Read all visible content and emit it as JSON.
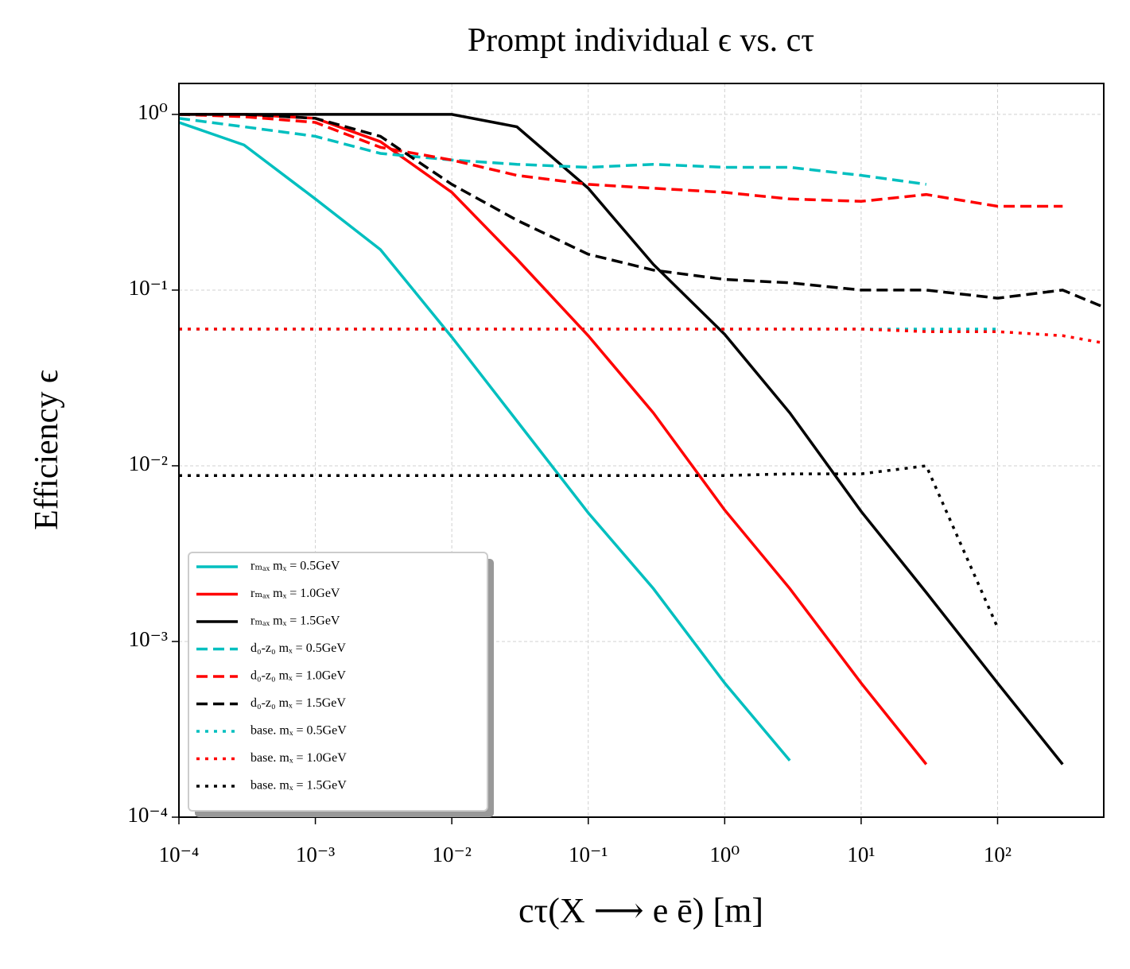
{
  "chart_data": {
    "type": "line",
    "title": "Prompt individual ϵ vs. cτ",
    "x_label": "cτ(X ⟶ e ē) [m]",
    "y_label": "Efficiency  ϵ",
    "xscale": "log",
    "yscale": "log",
    "grid": true,
    "legend": "lower left",
    "xlim": [
      0.0001,
      600
    ],
    "ylim": [
      0.0001,
      1.5
    ],
    "xticks": [
      {
        "value": 0.0001,
        "label": "10⁻⁴"
      },
      {
        "value": 0.001,
        "label": "10⁻³"
      },
      {
        "value": 0.01,
        "label": "10⁻²"
      },
      {
        "value": 0.1,
        "label": "10⁻¹"
      },
      {
        "value": 1,
        "label": "10⁰"
      },
      {
        "value": 10,
        "label": "10¹"
      },
      {
        "value": 100,
        "label": "10²"
      }
    ],
    "yticks": [
      {
        "value": 0.0001,
        "label": "10⁻⁴"
      },
      {
        "value": 0.001,
        "label": "10⁻³"
      },
      {
        "value": 0.01,
        "label": "10⁻²"
      },
      {
        "value": 0.1,
        "label": "10⁻¹"
      },
      {
        "value": 1,
        "label": "10⁰"
      }
    ],
    "x": [
      0.0001,
      0.0003,
      0.001,
      0.003,
      0.01,
      0.03,
      0.1,
      0.3,
      1,
      3,
      10,
      30,
      100,
      300,
      600
    ],
    "series": [
      {
        "name": "rₘₐₓ mₓ = 0.5GeV",
        "color": "#00bfbf",
        "linestyle": "solid",
        "values": [
          0.9,
          0.67,
          0.33,
          0.17,
          0.054,
          0.018,
          0.0054,
          0.002,
          0.00058,
          0.00021,
          null,
          null,
          null,
          null,
          null
        ]
      },
      {
        "name": "rₘₐₓ mₓ = 1.0GeV",
        "color": "#ff0000",
        "linestyle": "solid",
        "values": [
          1.0,
          1.0,
          0.95,
          0.7,
          0.36,
          0.15,
          0.055,
          0.02,
          0.0056,
          0.002,
          0.00058,
          0.0002,
          null,
          null,
          null
        ]
      },
      {
        "name": "rₘₐₓ mₓ = 1.5GeV",
        "color": "#000000",
        "linestyle": "solid",
        "values": [
          1.0,
          1.0,
          1.0,
          1.0,
          1.0,
          0.85,
          0.38,
          0.14,
          0.056,
          0.02,
          0.0055,
          0.0019,
          0.00058,
          0.0002,
          null
        ]
      },
      {
        "name": "d₀-z₀ mₓ = 0.5GeV",
        "color": "#00bfbf",
        "linestyle": "dashed",
        "values": [
          0.95,
          0.85,
          0.75,
          0.6,
          0.55,
          0.52,
          0.5,
          0.52,
          0.5,
          0.5,
          0.45,
          0.4,
          null,
          null,
          null
        ]
      },
      {
        "name": "d₀-z₀ mₓ = 1.0GeV",
        "color": "#ff0000",
        "linestyle": "dashed",
        "values": [
          1.0,
          0.97,
          0.9,
          0.65,
          0.55,
          0.45,
          0.4,
          0.38,
          0.36,
          0.33,
          0.32,
          0.35,
          0.3,
          0.3,
          null
        ]
      },
      {
        "name": "d₀-z₀ mₓ = 1.5GeV",
        "color": "#000000",
        "linestyle": "dashed",
        "values": [
          1.0,
          1.0,
          0.95,
          0.75,
          0.4,
          0.25,
          0.16,
          0.13,
          0.115,
          0.11,
          0.1,
          0.1,
          0.09,
          0.1,
          0.08
        ]
      },
      {
        "name": "base.  mₓ = 0.5GeV",
        "color": "#00bfbf",
        "linestyle": "dotted",
        "values": [
          0.06,
          0.06,
          0.06,
          0.06,
          0.06,
          0.06,
          0.06,
          0.06,
          0.06,
          0.06,
          0.06,
          0.06,
          0.06,
          null,
          null
        ]
      },
      {
        "name": "base.  mₓ = 1.0GeV",
        "color": "#ff0000",
        "linestyle": "dotted",
        "values": [
          0.06,
          0.06,
          0.06,
          0.06,
          0.06,
          0.06,
          0.06,
          0.06,
          0.06,
          0.06,
          0.06,
          0.058,
          0.058,
          0.055,
          0.05
        ]
      },
      {
        "name": "base.  mₓ = 1.5GeV",
        "color": "#000000",
        "linestyle": "dotted",
        "values": [
          0.0088,
          0.0088,
          0.0088,
          0.0088,
          0.0088,
          0.0088,
          0.0088,
          0.0088,
          0.0088,
          0.009,
          0.009,
          0.01,
          0.0012,
          null,
          null
        ]
      }
    ]
  }
}
